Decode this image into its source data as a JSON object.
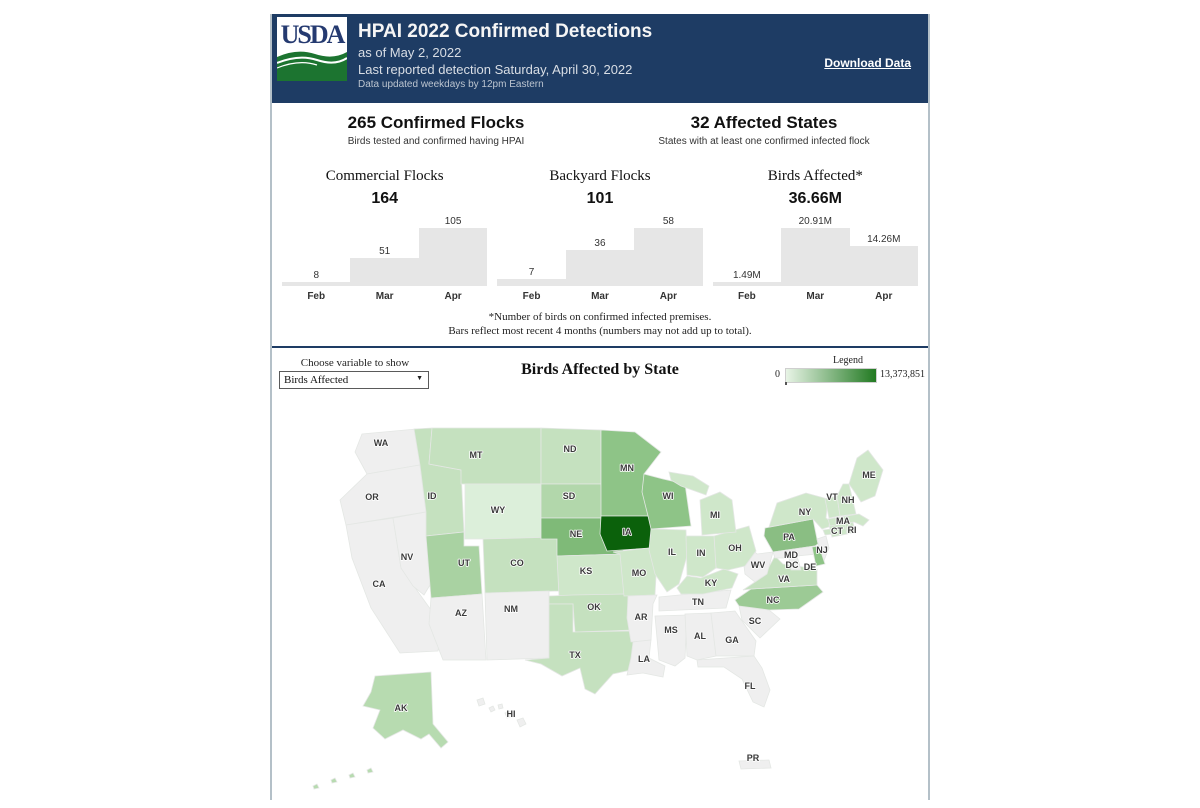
{
  "header": {
    "logo_text": "USDA",
    "title": "HPAI 2022 Confirmed Detections",
    "as_of": "as of May 2, 2022",
    "last_detection": "Last reported detection Saturday, April 30, 2022",
    "update_note": "Data updated weekdays by 12pm Eastern",
    "download_label": "Download Data"
  },
  "summary": {
    "flocks": {
      "heading": "265 Confirmed Flocks",
      "sub": "Birds tested and confirmed having HPAI"
    },
    "states": {
      "heading": "32 Affected States",
      "sub": "States with at least one confirmed infected flock"
    }
  },
  "footnotes": {
    "line1": "*Number of birds on confirmed infected premises.",
    "line2": "Bars reflect most recent 4 months (numbers may not add up to total)."
  },
  "map_controls": {
    "dropdown_label": "Choose variable to show",
    "selected": "Birds Affected",
    "title": "Birds Affected by State",
    "legend": {
      "label": "Legend",
      "min_label": "0",
      "max_label": "13,373,851",
      "start_color": "#e8f4e6",
      "end_color": "#227a22"
    }
  },
  "chart_data": [
    {
      "type": "bar",
      "title": "Commercial Flocks",
      "total": "164",
      "categories": [
        "Feb",
        "Mar",
        "Apr"
      ],
      "values": [
        8,
        51,
        105
      ],
      "value_labels": [
        "8",
        "51",
        "105"
      ],
      "bar_color": "#e6e6e6"
    },
    {
      "type": "bar",
      "title": "Backyard Flocks",
      "total": "101",
      "categories": [
        "Feb",
        "Mar",
        "Apr"
      ],
      "values": [
        7,
        36,
        58
      ],
      "value_labels": [
        "7",
        "36",
        "58"
      ],
      "bar_color": "#e6e6e6"
    },
    {
      "type": "bar",
      "title": "Birds Affected*",
      "total": "36.66M",
      "categories": [
        "Feb",
        "Mar",
        "Apr"
      ],
      "values": [
        1.49,
        20.91,
        14.26
      ],
      "value_labels": [
        "1.49M",
        "20.91M",
        "14.26M"
      ],
      "bar_color": "#e6e6e6"
    },
    {
      "type": "choropleth",
      "title": "Birds Affected by State",
      "legend_min": 0,
      "legend_max": 13373851,
      "states": [
        {
          "abbr": "WA",
          "fill": "#efefef"
        },
        {
          "abbr": "OR",
          "fill": "#efefef"
        },
        {
          "abbr": "CA",
          "fill": "#efefef"
        },
        {
          "abbr": "NV",
          "fill": "#efefef"
        },
        {
          "abbr": "ID",
          "fill": "#c5e1bf"
        },
        {
          "abbr": "MT",
          "fill": "#c5e1bf"
        },
        {
          "abbr": "WY",
          "fill": "#dcefda"
        },
        {
          "abbr": "UT",
          "fill": "#a9d2a2"
        },
        {
          "abbr": "CO",
          "fill": "#c5e1bf"
        },
        {
          "abbr": "AZ",
          "fill": "#efefef"
        },
        {
          "abbr": "NM",
          "fill": "#efefef"
        },
        {
          "abbr": "ND",
          "fill": "#c5e1bf"
        },
        {
          "abbr": "SD",
          "fill": "#b2d7ab"
        },
        {
          "abbr": "NE",
          "fill": "#7fba78"
        },
        {
          "abbr": "KS",
          "fill": "#cfe7ca"
        },
        {
          "abbr": "OK",
          "fill": "#c5e1bf"
        },
        {
          "abbr": "TX",
          "fill": "#c5e1bf"
        },
        {
          "abbr": "MN",
          "fill": "#8ec487"
        },
        {
          "abbr": "IA",
          "fill": "#0b610b"
        },
        {
          "abbr": "MO",
          "fill": "#cfe7ca"
        },
        {
          "abbr": "AR",
          "fill": "#efefef"
        },
        {
          "abbr": "LA",
          "fill": "#efefef"
        },
        {
          "abbr": "WI",
          "fill": "#8ec487"
        },
        {
          "abbr": "IL",
          "fill": "#cfe7ca"
        },
        {
          "abbr": "MS",
          "fill": "#efefef"
        },
        {
          "abbr": "AL",
          "fill": "#efefef"
        },
        {
          "abbr": "GA",
          "fill": "#efefef"
        },
        {
          "abbr": "FL",
          "fill": "#efefef"
        },
        {
          "abbr": "SC",
          "fill": "#efefef"
        },
        {
          "abbr": "NC",
          "fill": "#9cca95"
        },
        {
          "abbr": "TN",
          "fill": "#efefef"
        },
        {
          "abbr": "KY",
          "fill": "#cfe7ca"
        },
        {
          "abbr": "VA",
          "fill": "#c5e1bf"
        },
        {
          "abbr": "WV",
          "fill": "#efefef"
        },
        {
          "abbr": "OH",
          "fill": "#cfe7ca"
        },
        {
          "abbr": "IN",
          "fill": "#cfe7ca"
        },
        {
          "abbr": "MI",
          "fill": "#cfe7ca"
        },
        {
          "abbr": "PA",
          "fill": "#8abe83"
        },
        {
          "abbr": "NY",
          "fill": "#cfe7ca"
        },
        {
          "abbr": "NJ",
          "fill": "#efefef"
        },
        {
          "abbr": "MD",
          "fill": "#efefef"
        },
        {
          "abbr": "DE",
          "fill": "#8ec487"
        },
        {
          "abbr": "DC",
          "fill": "#efefef"
        },
        {
          "abbr": "CT",
          "fill": "#cfe7ca"
        },
        {
          "abbr": "RI",
          "fill": "#cfe7ca"
        },
        {
          "abbr": "MA",
          "fill": "#cfe7ca"
        },
        {
          "abbr": "VT",
          "fill": "#cfe7ca"
        },
        {
          "abbr": "NH",
          "fill": "#cfe7ca"
        },
        {
          "abbr": "ME",
          "fill": "#cfe7ca"
        },
        {
          "abbr": "AK",
          "fill": "#b7dbb0"
        },
        {
          "abbr": "HI",
          "fill": "#efefef"
        },
        {
          "abbr": "PR",
          "fill": "#efefef"
        }
      ]
    }
  ]
}
